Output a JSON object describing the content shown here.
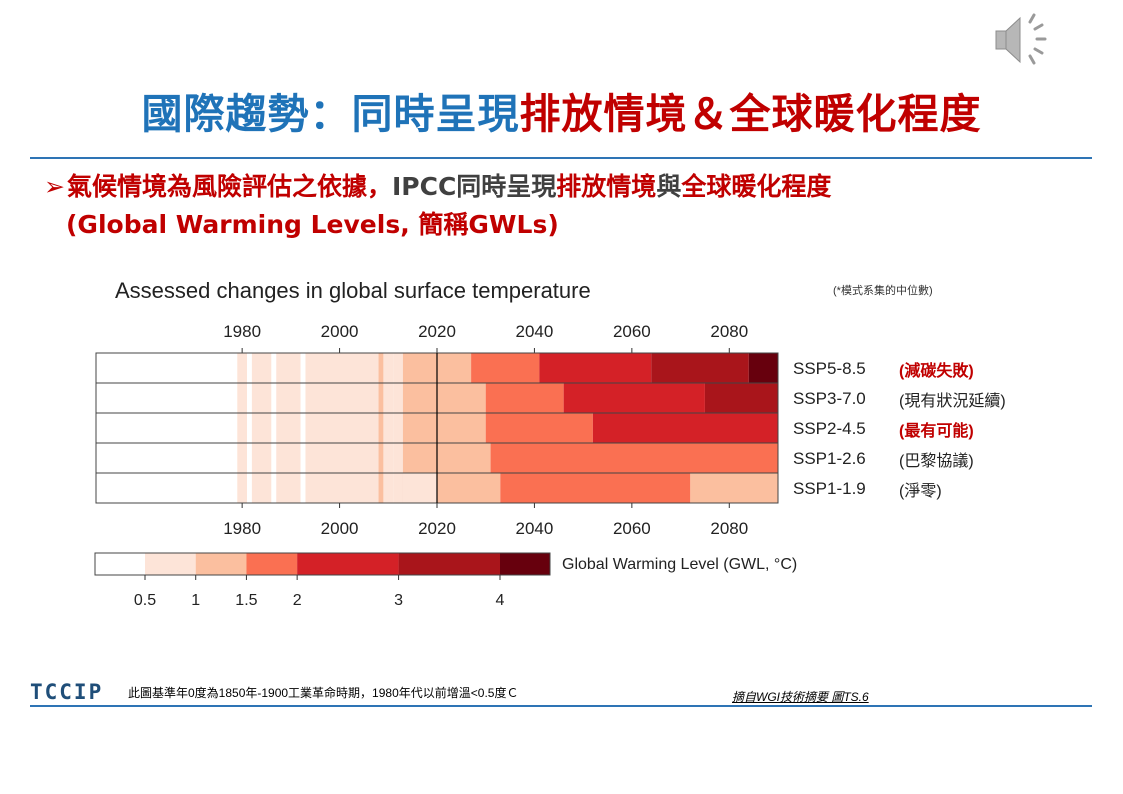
{
  "slide": {
    "title_part1": "國際趨勢：同時呈現",
    "title_part2": "排放情境＆全球暖化程度",
    "bullet_part1": "氣候情境為風險評估之依據，",
    "bullet_part2": "IPCC同時呈現",
    "bullet_part3": "排放情境",
    "bullet_part4": "與",
    "bullet_part5": "全球暖化程度",
    "bullet_line2": "(Global Warming Levels, 簡稱GWLs)",
    "logo_text": "TCCIP",
    "footnote": "此圖基準年0度為1850年-1900工業革命時期，1980年代以前增溫<0.5度Ｃ",
    "source": "摘自WGI技術摘要 圖TS.6"
  },
  "icons": {
    "audio": "speaker-icon"
  },
  "colors": {
    "title_blue": "#1f73b8",
    "title_red": "#c00000",
    "divider": "#2e74b5",
    "scale": [
      "#ffffff",
      "#fde4d8",
      "#fbbf9f",
      "#fa7052",
      "#d42127",
      "#a9151b",
      "#67000d"
    ]
  },
  "chart_data": {
    "type": "heatmap",
    "title": "Assessed changes in global surface temperature",
    "note": "(*模式系集的中位數)",
    "x_ticks": [
      1980,
      2000,
      2020,
      2040,
      2060,
      2080
    ],
    "xlim": [
      1950,
      2090
    ],
    "reference_year": 2020,
    "gwl_thresholds": [
      0.5,
      1,
      1.5,
      2,
      3,
      4
    ],
    "gwl_legend_label": "Global Warming Level (GWL, °C)",
    "historical": [
      {
        "start": 1950,
        "end": 1979,
        "level": 0
      },
      {
        "start": 1979,
        "end": 1981,
        "level": 1
      },
      {
        "start": 1981,
        "end": 1982,
        "level": 0
      },
      {
        "start": 1982,
        "end": 1986,
        "level": 1
      },
      {
        "start": 1986,
        "end": 1987,
        "level": 0
      },
      {
        "start": 1987,
        "end": 1992,
        "level": 1
      },
      {
        "start": 1992,
        "end": 1993,
        "level": 0
      },
      {
        "start": 1993,
        "end": 2008,
        "level": 1
      },
      {
        "start": 2008,
        "end": 2009,
        "level": 2
      },
      {
        "start": 2009,
        "end": 2011,
        "level": 1
      },
      {
        "start": 2011,
        "end": 2013,
        "level": 1
      },
      {
        "start": 2013,
        "end": 2020,
        "level": 2
      }
    ],
    "scenarios": [
      {
        "name": "SSP5-8.5",
        "note": "(減碳失敗)",
        "note_color": "#c00000",
        "segments": [
          {
            "start": 2020,
            "end": 2027,
            "level": 2
          },
          {
            "start": 2027,
            "end": 2041,
            "level": 3
          },
          {
            "start": 2041,
            "end": 2064,
            "level": 4
          },
          {
            "start": 2064,
            "end": 2084,
            "level": 5
          },
          {
            "start": 2084,
            "end": 2090,
            "level": 6
          }
        ]
      },
      {
        "name": "SSP3-7.0",
        "note": "(現有狀況延續)",
        "note_color": "#222222",
        "segments": [
          {
            "start": 2020,
            "end": 2030,
            "level": 2
          },
          {
            "start": 2030,
            "end": 2046,
            "level": 3
          },
          {
            "start": 2046,
            "end": 2075,
            "level": 4
          },
          {
            "start": 2075,
            "end": 2090,
            "level": 5
          }
        ]
      },
      {
        "name": "SSP2-4.5",
        "note": "(最有可能)",
        "note_color": "#c00000",
        "segments": [
          {
            "start": 2020,
            "end": 2030,
            "level": 2
          },
          {
            "start": 2030,
            "end": 2052,
            "level": 3
          },
          {
            "start": 2052,
            "end": 2090,
            "level": 4
          }
        ]
      },
      {
        "name": "SSP1-2.6",
        "note": "(巴黎協議)",
        "note_color": "#222222",
        "segments": [
          {
            "start": 2020,
            "end": 2031,
            "level": 2
          },
          {
            "start": 2031,
            "end": 2090,
            "level": 3
          }
        ]
      },
      {
        "name": "SSP1-1.9",
        "note": "(淨零)",
        "note_color": "#222222",
        "segments": [
          {
            "start": 2013,
            "end": 2020,
            "level": 1
          },
          {
            "start": 2020,
            "end": 2033,
            "level": 2
          },
          {
            "start": 2033,
            "end": 2072,
            "level": 3
          },
          {
            "start": 2072,
            "end": 2090,
            "level": 2
          }
        ]
      }
    ]
  }
}
